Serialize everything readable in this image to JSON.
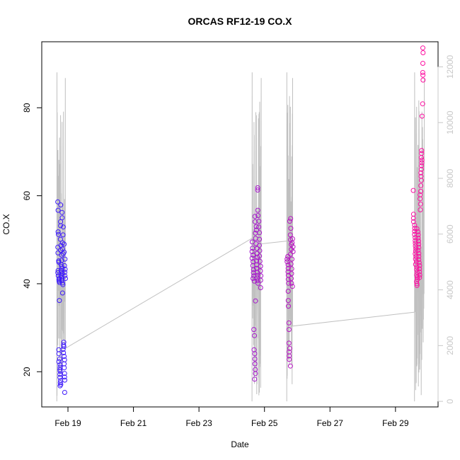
{
  "chart_data": {
    "type": "scatter",
    "title": "ORCAS RF12-19 CO.X",
    "xlabel": "Date",
    "ylabel": "CO.X",
    "x_ticks": [
      "Feb 19",
      "Feb 21",
      "Feb 23",
      "Feb 25",
      "Feb 27",
      "Feb 29"
    ],
    "x_tick_days": [
      19,
      21,
      23,
      25,
      27,
      29
    ],
    "xlim_days": [
      18.2,
      30.3
    ],
    "ylim": [
      12,
      95
    ],
    "y_ticks": [
      20,
      40,
      60,
      80
    ],
    "y2_ticks": [
      0,
      2000,
      4000,
      6000,
      8000,
      10000,
      12000
    ],
    "y2lim": [
      -200,
      12900
    ],
    "colors": {
      "start": "#3a1aff",
      "end": "#ff10a0",
      "secondary": "#c0c0c0"
    },
    "flights": [
      {
        "t_start": 18.68,
        "t_end": 18.92,
        "co": [
          58.6,
          56.7,
          51.8,
          51.2,
          48.3,
          47.0,
          45.2,
          44.9,
          43.0,
          42.5,
          41.8,
          41.2,
          40.9,
          40.6,
          40.3,
          36.2,
          25.0,
          24.1,
          22.9,
          22.3,
          21.6,
          21.0,
          20.5,
          20.1,
          19.4,
          18.7,
          18.0,
          17.5,
          17.1,
          16.8,
          57.9,
          54.1,
          53.2,
          50.1,
          48.7,
          47.6,
          46.5,
          45.3,
          44.4,
          43.9,
          43.5,
          43.1,
          42.7,
          42.3,
          41.9,
          41.5,
          41.1,
          40.7,
          40.2,
          39.8,
          56.2,
          55.0,
          52.9,
          51.1,
          49.3,
          47.9,
          46.8,
          37.9,
          26.7,
          26.1,
          25.7,
          25.1,
          24.3,
          23.5,
          22.7,
          21.8,
          20.9,
          19.6,
          18.8,
          18.1,
          15.3,
          49.0,
          47.2,
          45.6,
          44.1,
          43.3,
          42.6,
          41.8,
          41.2
        ]
      },
      {
        "t_start": 24.62,
        "t_end": 24.88,
        "co": [
          49.5,
          48.1,
          47.3,
          46.5,
          45.8,
          45.0,
          44.1,
          43.2,
          42.5,
          41.8,
          41.2,
          40.6,
          29.6,
          28.2,
          25.0,
          24.1,
          22.9,
          21.8,
          20.5,
          19.6,
          18.3,
          36.1,
          55.3,
          54.1,
          53.0,
          52.2,
          51.5,
          50.3,
          49.1,
          48.0,
          46.9,
          46.0,
          45.2,
          44.3,
          43.5,
          42.6,
          41.9,
          41.3,
          40.7,
          40.1,
          61.8,
          61.3,
          56.7,
          55.5,
          54.2,
          52.9,
          51.6,
          50.1,
          48.7,
          47.5,
          46.3,
          45.1,
          44.0,
          42.9,
          41.8,
          40.8,
          39.1
        ]
      },
      {
        "t_start": 25.7,
        "t_end": 25.86,
        "co": [
          46.2,
          45.6,
          45.0,
          44.3,
          43.5,
          42.7,
          41.9,
          41.0,
          40.1,
          38.3,
          36.2,
          34.9,
          31.1,
          29.6,
          26.5,
          25.3,
          24.5,
          23.6,
          22.8,
          21.3,
          54.8,
          54.2,
          52.6,
          51.1,
          50.0,
          48.9,
          47.8,
          46.7,
          45.6,
          44.5,
          43.4,
          42.3,
          41.2,
          40.1,
          39.4,
          50.2,
          49.3,
          48.4,
          47.3
        ]
      },
      {
        "t_start": 29.55,
        "t_end": 29.85,
        "co": [
          61.2,
          55.8,
          54.9,
          54.1,
          53.3,
          52.6,
          51.9,
          51.2,
          50.5,
          49.8,
          49.2,
          48.6,
          48.0,
          47.4,
          46.8,
          46.2,
          45.6,
          45.0,
          44.4,
          43.8,
          43.2,
          42.6,
          42.0,
          41.5,
          41.0,
          40.5,
          40.0,
          39.6,
          52.5,
          51.8,
          51.1,
          50.4,
          49.7,
          49.0,
          48.3,
          47.6,
          46.9,
          46.2,
          45.5,
          44.8,
          44.1,
          43.4,
          42.7,
          42.0,
          41.4,
          56.8,
          58.1,
          59.3,
          60.2,
          61.0,
          62.3,
          63.5,
          64.4,
          65.2,
          66.0,
          66.8,
          67.5,
          68.1,
          68.7,
          69.6,
          70.3,
          78.1,
          80.9,
          86.3,
          87.4,
          88.0,
          90.1,
          92.5,
          93.6
        ]
      }
    ],
    "secondary_series": [
      {
        "t_start": 18.66,
        "t_end": 18.92,
        "connect_to_next": [
          18.92,
          1900
        ]
      },
      {
        "t_start": 24.62,
        "t_end": 24.9,
        "connect_to_next": [
          24.9,
          5650
        ]
      },
      {
        "t_start": 25.68,
        "t_end": 25.86,
        "connect_to_next": [
          25.86,
          2700
        ]
      },
      {
        "t_start": 29.58,
        "t_end": 29.88,
        "connect_to_next": null
      }
    ],
    "grid": false,
    "legend": "none"
  }
}
